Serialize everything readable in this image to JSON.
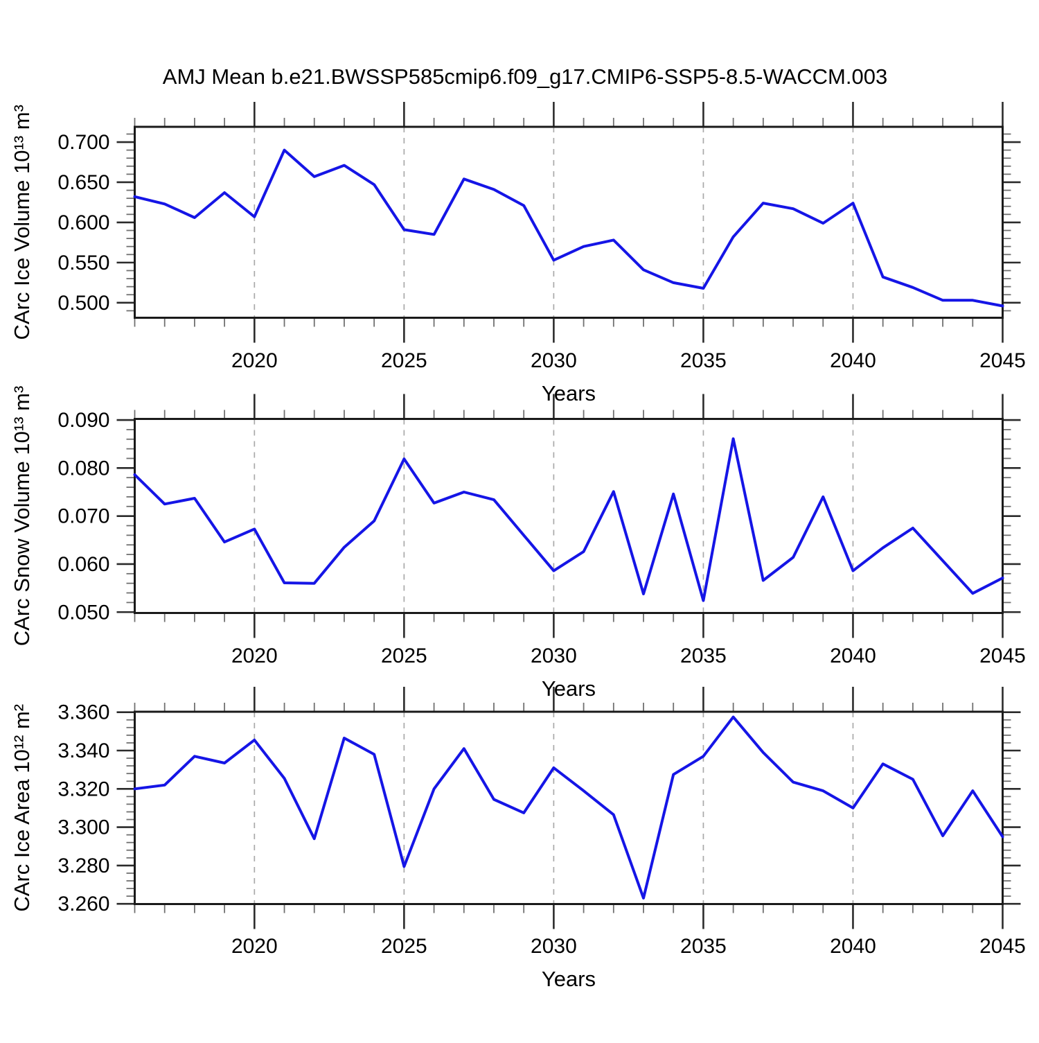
{
  "title": "AMJ Mean b.e21.BWSSP585cmip6.f09_g17.CMIP6-SSP5-8.5-WACCM.003",
  "colors": {
    "line": "#1515e6",
    "grid": "#a9a9a9",
    "axis": "#1a1a1a",
    "minor_tick": "#707070",
    "major_tick": "#2b2b2b",
    "background": "#ffffff"
  },
  "chart_data": [
    {
      "type": "line",
      "title": "",
      "ylabel": "CArc Ice Volume 10¹³ m³",
      "xlabel": "Years",
      "x": [
        2016,
        2017,
        2018,
        2019,
        2020,
        2021,
        2022,
        2023,
        2024,
        2025,
        2026,
        2027,
        2028,
        2029,
        2030,
        2031,
        2032,
        2033,
        2034,
        2035,
        2036,
        2037,
        2038,
        2039,
        2040,
        2041,
        2042,
        2043,
        2044,
        2045
      ],
      "values": [
        0.632,
        0.623,
        0.606,
        0.637,
        0.607,
        0.69,
        0.657,
        0.671,
        0.647,
        0.591,
        0.585,
        0.654,
        0.641,
        0.621,
        0.553,
        0.57,
        0.578,
        0.541,
        0.525,
        0.518,
        0.582,
        0.624,
        0.617,
        0.599,
        0.624,
        0.532,
        0.519,
        0.503,
        0.503,
        0.496
      ],
      "xlim": [
        2016,
        2045
      ],
      "ylim": [
        0.4813,
        0.719
      ],
      "xticks_major": [
        2020,
        2025,
        2030,
        2035,
        2040,
        2045
      ],
      "xtick_labels": [
        "2020",
        "2025",
        "2030",
        "2035",
        "2040",
        "2045"
      ],
      "yticks_major": [
        0.7,
        0.65,
        0.6,
        0.55,
        0.5
      ],
      "ytick_labels": [
        "0.700",
        "0.650",
        "0.600",
        "0.550",
        "0.500"
      ],
      "ytick_minor_step": 0.01,
      "grid": "vertical-dashed-at-major-xticks",
      "legend": "none"
    },
    {
      "type": "line",
      "title": "",
      "ylabel": "CArc Snow Volume 10¹³ m³",
      "xlabel": "Years",
      "x": [
        2016,
        2017,
        2018,
        2019,
        2020,
        2021,
        2022,
        2023,
        2024,
        2025,
        2026,
        2027,
        2028,
        2029,
        2030,
        2031,
        2032,
        2033,
        2034,
        2035,
        2036,
        2037,
        2038,
        2039,
        2040,
        2041,
        2042,
        2043,
        2044,
        2045
      ],
      "values": [
        0.0786,
        0.0725,
        0.0737,
        0.0646,
        0.0673,
        0.0561,
        0.056,
        0.0635,
        0.069,
        0.0819,
        0.0727,
        0.075,
        0.0734,
        0.066,
        0.0586,
        0.0626,
        0.0751,
        0.0538,
        0.0746,
        0.0524,
        0.0861,
        0.0566,
        0.0614,
        0.074,
        0.0586,
        0.0634,
        0.0675,
        0.0607,
        0.0539,
        0.0571
      ],
      "xlim": [
        2016,
        2045
      ],
      "ylim": [
        0.04982,
        0.09022
      ],
      "xticks_major": [
        2020,
        2025,
        2030,
        2035,
        2040,
        2045
      ],
      "xtick_labels": [
        "2020",
        "2025",
        "2030",
        "2035",
        "2040",
        "2045"
      ],
      "yticks_major": [
        0.09,
        0.08,
        0.07,
        0.06,
        0.05
      ],
      "ytick_labels": [
        "0.090",
        "0.080",
        "0.070",
        "0.060",
        "0.050"
      ],
      "ytick_minor_step": 0.002,
      "grid": "vertical-dashed-at-major-xticks",
      "legend": "none"
    },
    {
      "type": "line",
      "title": "",
      "ylabel": "CArc Ice Area 10¹² m²",
      "xlabel": "Years",
      "x": [
        2016,
        2017,
        2018,
        2019,
        2020,
        2021,
        2022,
        2023,
        2024,
        2025,
        2026,
        2027,
        2028,
        2029,
        2030,
        2031,
        2032,
        2033,
        2034,
        2035,
        2036,
        2037,
        2038,
        2039,
        2040,
        2041,
        2042,
        2043,
        2044,
        2045
      ],
      "values": [
        3.32,
        3.322,
        3.337,
        3.3335,
        3.3455,
        3.3255,
        3.294,
        3.3465,
        3.338,
        3.2795,
        3.32,
        3.341,
        3.3145,
        3.3075,
        3.331,
        3.319,
        3.3065,
        3.263,
        3.3275,
        3.337,
        3.3575,
        3.339,
        3.3235,
        3.319,
        3.31,
        3.333,
        3.325,
        3.2955,
        3.319,
        3.295
      ],
      "xlim": [
        2016,
        2045
      ],
      "ylim": [
        3.25989,
        3.36025
      ],
      "xticks_major": [
        2020,
        2025,
        2030,
        2035,
        2040,
        2045
      ],
      "xtick_labels": [
        "2020",
        "2025",
        "2030",
        "2035",
        "2040",
        "2045"
      ],
      "yticks_major": [
        3.36,
        3.34,
        3.32,
        3.3,
        3.28,
        3.26
      ],
      "ytick_labels": [
        "3.360",
        "3.340",
        "3.320",
        "3.300",
        "3.280",
        "3.260"
      ],
      "ytick_minor_step": 0.004,
      "grid": "vertical-dashed-at-major-xticks",
      "legend": "none"
    }
  ]
}
